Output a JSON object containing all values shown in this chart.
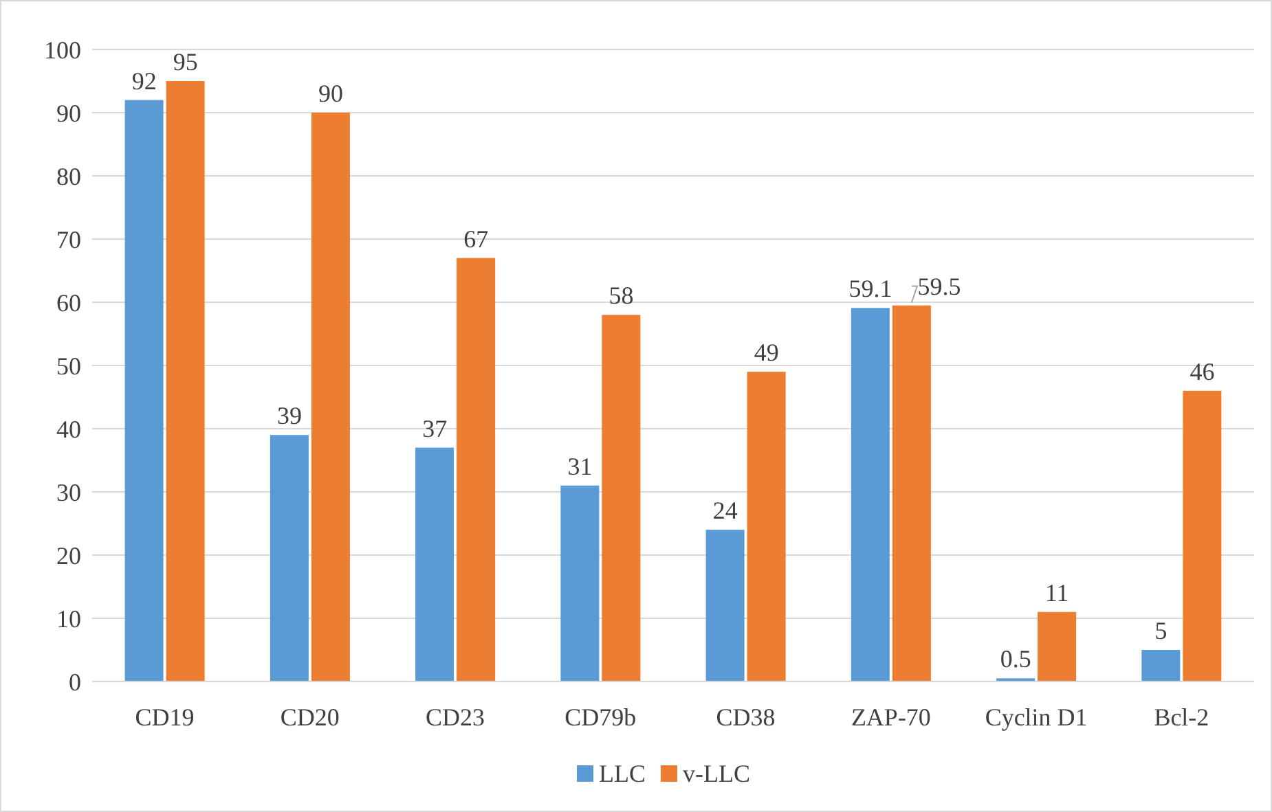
{
  "chart_data": {
    "type": "bar",
    "categories": [
      "CD19",
      "CD20",
      "CD23",
      "CD79b",
      "CD38",
      "ZAP-70",
      "Cyclin D1",
      "Bcl-2"
    ],
    "series": [
      {
        "name": "LLC",
        "color": "#5b9bd5",
        "values": [
          92,
          39,
          37,
          31,
          24,
          59.1,
          0.5,
          5
        ]
      },
      {
        "name": "v-LLC",
        "color": "#ed7d31",
        "values": [
          95,
          90,
          67,
          58,
          49,
          59.5,
          11,
          46
        ]
      }
    ],
    "ylim": [
      0,
      100
    ],
    "yticks": [
      0,
      10,
      20,
      30,
      40,
      50,
      60,
      70,
      80,
      90,
      100
    ],
    "grid": "y",
    "legend": "bottom",
    "data_labels": true
  }
}
